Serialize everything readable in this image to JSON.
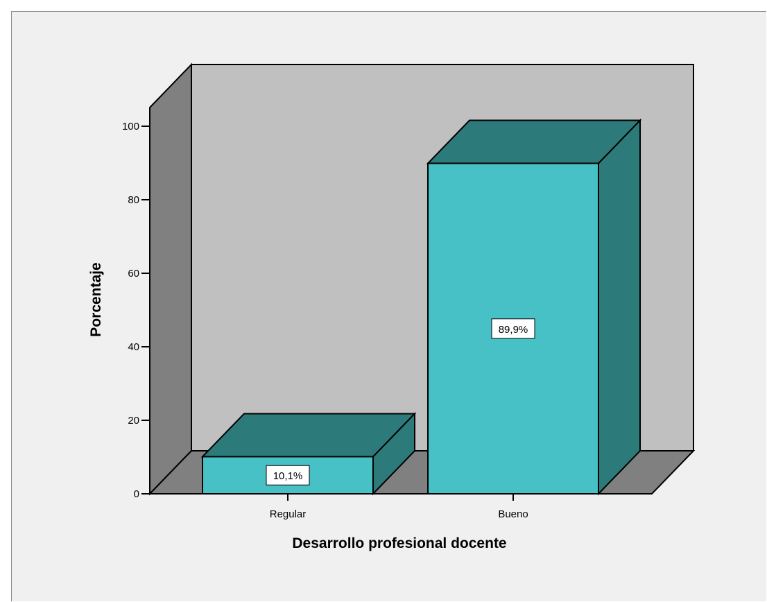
{
  "chart_data": {
    "type": "bar",
    "categories": [
      "Regular",
      "Bueno"
    ],
    "values": [
      10.1,
      89.9
    ],
    "data_labels": [
      "10,1%",
      "89,9%"
    ],
    "xlabel": "Desarrollo profesional docente",
    "ylabel": "Porcentaje",
    "ylim": [
      0,
      100
    ],
    "yticks": [
      0,
      20,
      40,
      60,
      80,
      100
    ],
    "three_d": true,
    "grid": false,
    "colors": {
      "bar_front": "#48c1c6",
      "bar_top": "#2d7a7b",
      "bar_side": "#2d7a7b",
      "back_wall": "#c0c0c0",
      "side_wall": "#808080",
      "floor": "#808080",
      "background": "#f0f0f0"
    }
  }
}
